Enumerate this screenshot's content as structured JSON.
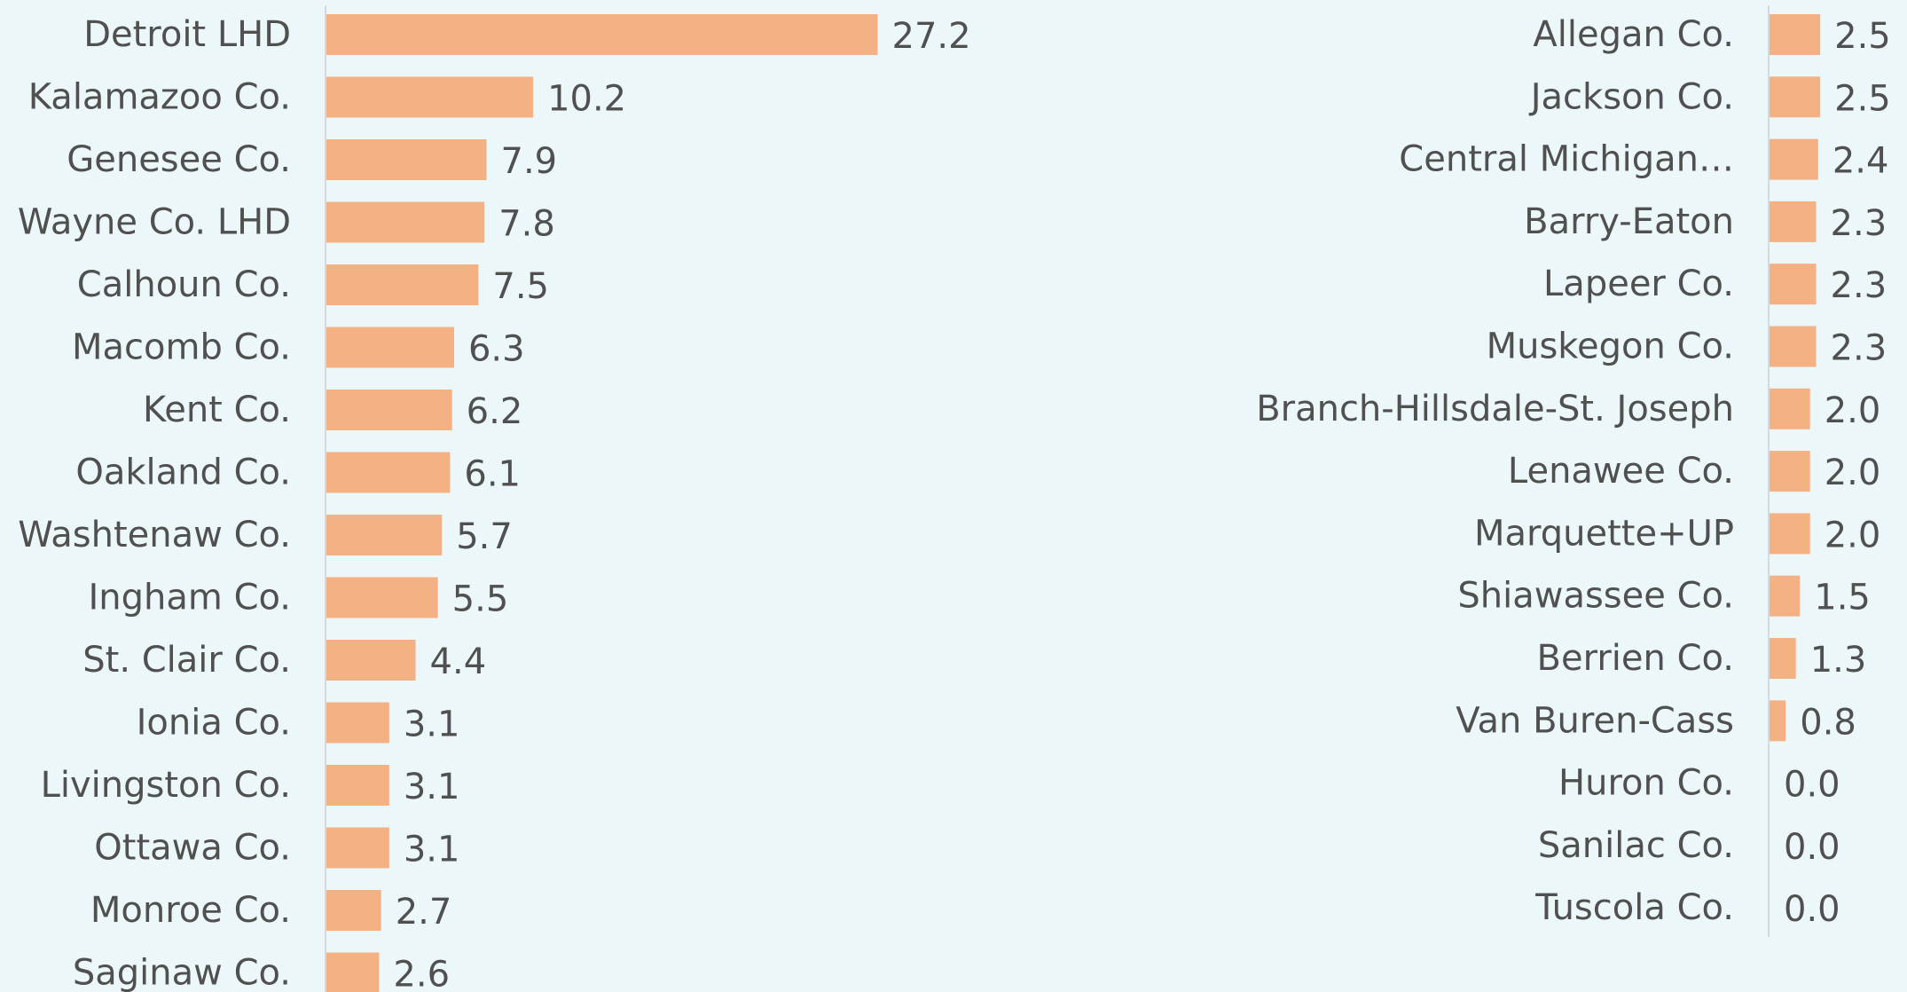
{
  "chart_data": [
    {
      "type": "bar",
      "orientation": "horizontal",
      "categories": [
        "Detroit LHD",
        "Kalamazoo Co.",
        "Genesee Co.",
        "Wayne Co. LHD",
        "Calhoun Co.",
        "Macomb Co.",
        "Kent Co.",
        "Oakland Co.",
        "Washtenaw Co.",
        "Ingham Co.",
        "St. Clair Co.",
        "Ionia Co.",
        "Livingston Co.",
        "Ottawa Co.",
        "Monroe Co.",
        "Saginaw Co."
      ],
      "values": [
        27.2,
        10.2,
        7.9,
        7.8,
        7.5,
        6.3,
        6.2,
        6.1,
        5.7,
        5.5,
        4.4,
        3.1,
        3.1,
        3.1,
        2.7,
        2.6
      ],
      "value_labels": [
        "27.2",
        "10.2",
        "7.9",
        "7.8",
        "7.5",
        "6.3",
        "6.2",
        "6.1",
        "5.7",
        "5.5",
        "4.4",
        "3.1",
        "3.1",
        "3.1",
        "2.7",
        "2.6"
      ],
      "bar_color": "#f4b183",
      "grid": false,
      "legend": "none"
    },
    {
      "type": "bar",
      "orientation": "horizontal",
      "categories": [
        "Allegan Co.",
        "Jackson Co.",
        "Central Michigan…",
        "Barry-Eaton",
        "Lapeer Co.",
        "Muskegon Co.",
        "Branch-Hillsdale-St. Joseph",
        "Lenawee Co.",
        "Marquette+UP",
        "Shiawassee Co.",
        "Berrien Co.",
        "Van Buren-Cass",
        "Huron Co.",
        "Sanilac Co.",
        "Tuscola Co."
      ],
      "values": [
        2.5,
        2.5,
        2.4,
        2.3,
        2.3,
        2.3,
        2.0,
        2.0,
        2.0,
        1.5,
        1.3,
        0.8,
        0.0,
        0.0,
        0.0
      ],
      "value_labels": [
        "2.5",
        "2.5",
        "2.4",
        "2.3",
        "2.3",
        "2.3",
        "2.0",
        "2.0",
        "2.0",
        "1.5",
        "1.3",
        "0.8",
        "0.0",
        "0.0",
        "0.0"
      ],
      "bar_color": "#f4b183",
      "grid": false,
      "legend": "none"
    }
  ],
  "colors": {
    "background": "#ecf7fa",
    "bar": "#f4b183",
    "text": "#505050",
    "axis": "#d6dadd"
  }
}
